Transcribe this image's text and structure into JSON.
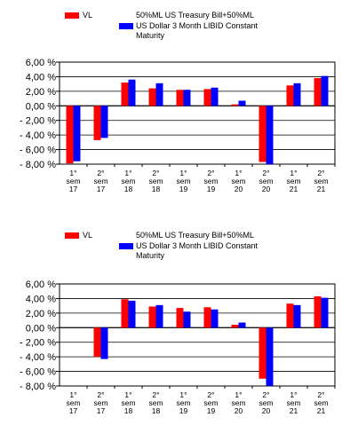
{
  "chart_data": [
    {
      "type": "bar",
      "categories": [
        "1° sem 17",
        "2° sem 17",
        "1° sem 18",
        "2° sem 18",
        "1° sem 19",
        "2° sem 19",
        "1° sem 20",
        "2° sem 20",
        "1° sem 21",
        "2° sem 21"
      ],
      "series": [
        {
          "name": "VL",
          "color": "#ff0000",
          "values": [
            -7.9,
            -4.7,
            3.2,
            2.4,
            2.2,
            2.3,
            0.2,
            -7.7,
            2.8,
            3.8
          ]
        },
        {
          "name": "50%ML US Treasury Bill+50%ML US Dollar 3 Month LIBID Constant Maturity",
          "color": "#0000ff",
          "values": [
            -7.6,
            -4.4,
            3.6,
            3.1,
            2.2,
            2.5,
            0.7,
            -8.0,
            3.1,
            4.1
          ]
        }
      ],
      "y_ticks": [
        "6,00 %",
        "4,00 %",
        "2,00 %",
        "0,00 %",
        "- 2,00 %",
        "- 4,00 %",
        "- 6,00 %",
        "- 8,00 %"
      ],
      "ylim": [
        -8,
        6
      ],
      "grid": true,
      "legend": "top"
    },
    {
      "type": "bar",
      "categories": [
        "1° sem 17",
        "2° sem 17",
        "1° sem 18",
        "2° sem 18",
        "1° sem 19",
        "2° sem 19",
        "1° sem 20",
        "2° sem 20",
        "1° sem 21",
        "2° sem 21"
      ],
      "series": [
        {
          "name": "VL",
          "color": "#ff0000",
          "values": [
            0,
            -4.0,
            3.9,
            2.9,
            2.7,
            2.8,
            0.4,
            -7.0,
            3.3,
            4.3
          ]
        },
        {
          "name": "50%ML US Treasury Bill+50%ML US Dollar 3 Month LIBID Constant Maturity",
          "color": "#0000ff",
          "values": [
            0,
            -4.3,
            3.7,
            3.1,
            2.2,
            2.5,
            0.7,
            -8.0,
            3.1,
            4.1
          ]
        }
      ],
      "y_ticks": [
        "6,00 %",
        "4,00 %",
        "2,00 %",
        "0,00 %",
        "- 2,00 %",
        "- 4,00 %",
        "- 6,00 %",
        "- 8,00 %"
      ],
      "ylim": [
        -8,
        6
      ],
      "grid": true,
      "legend": "top"
    }
  ],
  "legend_text": [
    {
      "vl": "VL",
      "bench_lines": [
        "50%ML US Treasury Bill+50%ML",
        "US Dollar 3 Month LIBID Constant",
        "Maturity"
      ]
    },
    {
      "vl": "VL",
      "bench_lines": [
        "50%ML US Treasury Bill+50%ML",
        "US Dollar 3 Month LIBID Constant",
        "Maturity"
      ]
    }
  ]
}
